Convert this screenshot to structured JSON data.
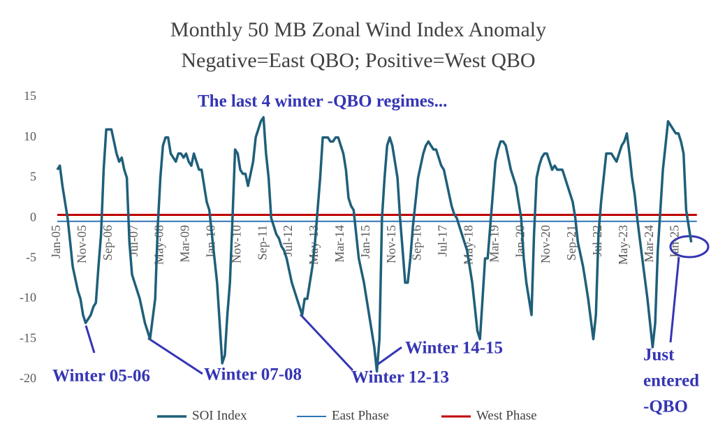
{
  "chart_data": {
    "type": "line",
    "title": "Monthly  50 MB  Zonal  Wind Index Anomaly",
    "subtitle": "Negative=East  QBO; Positive=West QBO",
    "categories": [
      "Jan-05",
      null,
      null,
      null,
      null,
      null,
      null,
      null,
      null,
      null,
      "Nov-05",
      null,
      null,
      null,
      null,
      null,
      null,
      null,
      null,
      null,
      "Sep-06",
      null,
      null,
      null,
      null,
      null,
      null,
      null,
      null,
      null,
      "Jul-07",
      null,
      null,
      null,
      null,
      null,
      null,
      null,
      null,
      null,
      "May-08",
      null,
      null,
      null,
      null,
      null,
      null,
      null,
      null,
      null,
      "Mar-09",
      null,
      null,
      null,
      null,
      null,
      null,
      null,
      null,
      null,
      "Jan-10",
      null,
      null,
      null,
      null,
      null,
      null,
      null,
      null,
      null,
      "Nov-10",
      null,
      null,
      null,
      null,
      null,
      null,
      null,
      null,
      null,
      "Sep-11",
      null,
      null,
      null,
      null,
      null,
      null,
      null,
      null,
      null,
      "Jul-12",
      null,
      null,
      null,
      null,
      null,
      null,
      null,
      null,
      null,
      "May-13",
      null,
      null,
      null,
      null,
      null,
      null,
      null,
      null,
      null,
      "Mar-14",
      null,
      null,
      null,
      null,
      null,
      null,
      null,
      null,
      null,
      "Jan-15",
      null,
      null,
      null,
      null,
      null,
      null,
      null,
      null,
      null,
      "Nov-15",
      null,
      null,
      null,
      null,
      null,
      null,
      null,
      null,
      null,
      "Sep-16",
      null,
      null,
      null,
      null,
      null,
      null,
      null,
      null,
      null,
      "Jul-17",
      null,
      null,
      null,
      null,
      null,
      null,
      null,
      null,
      null,
      "May-18",
      null,
      null,
      null,
      null,
      null,
      null,
      null,
      null,
      null,
      "Mar-19",
      null,
      null,
      null,
      null,
      null,
      null,
      null,
      null,
      null,
      "Jan-20",
      null,
      null,
      null,
      null,
      null,
      null,
      null,
      null,
      null,
      "Nov-20",
      null,
      null,
      null,
      null,
      null,
      null,
      null,
      null,
      null,
      "Sep-21",
      null,
      null,
      null,
      null,
      null,
      null,
      null,
      null,
      null,
      "Jul-22",
      null,
      null,
      null,
      null,
      null,
      null,
      null,
      null,
      null,
      "May-23",
      null,
      null,
      null,
      null,
      null,
      null,
      null,
      null,
      null,
      "Mar-24",
      null,
      null,
      null,
      null,
      null,
      null,
      null,
      null,
      null,
      "Jan-25",
      null,
      null,
      null,
      null,
      null,
      null
    ],
    "series": [
      {
        "name": "SOI Index",
        "color": "#1f5f7a",
        "values": [
          6,
          6.5,
          4,
          2,
          0,
          -3,
          -6,
          -7.5,
          -9,
          -10,
          -12,
          -13,
          -12.5,
          -12,
          -11,
          -10.5,
          -6,
          -2,
          6,
          11,
          11,
          11,
          9.5,
          8,
          7,
          7.5,
          6,
          5,
          -3,
          -7,
          -8,
          -9,
          -10,
          -11.5,
          -13,
          -14,
          -15,
          -12.5,
          -10,
          -1,
          5,
          9,
          10,
          10,
          8,
          7.5,
          7,
          8,
          8,
          7.5,
          8,
          7,
          6.5,
          8,
          7,
          6,
          6,
          4,
          2,
          1,
          -2,
          -5,
          -8,
          -13,
          -18,
          -17,
          -12,
          -8,
          0,
          8.5,
          8,
          6,
          5.5,
          5.5,
          4,
          5.5,
          7,
          10,
          11,
          12,
          12.5,
          8,
          5,
          0,
          -1,
          -2,
          -2.5,
          -3.5,
          -4,
          -5,
          -6.5,
          -8,
          -9,
          -10,
          -11,
          -12,
          -10,
          -10,
          -8,
          -6,
          -3,
          1,
          5,
          10,
          10,
          10,
          9.5,
          9.5,
          10,
          10,
          9,
          8,
          6,
          2.5,
          1.5,
          1,
          -2,
          -5,
          -6.5,
          -8,
          -10,
          -12,
          -14,
          -16,
          -19,
          -15,
          0,
          5,
          9,
          10,
          9,
          7,
          5,
          0,
          -4,
          -8,
          -8,
          -5,
          -1,
          2,
          5,
          6.5,
          8,
          9,
          9.5,
          9,
          8.5,
          8.5,
          7.5,
          6.5,
          6,
          4.5,
          3,
          1.5,
          0.5,
          0,
          -1,
          -2,
          -3,
          -4,
          -6,
          -8,
          -11,
          -14,
          -15,
          -10,
          -5,
          -5,
          -1,
          3,
          7,
          8.5,
          9.5,
          9.5,
          9,
          7.5,
          6,
          5,
          4,
          2,
          0,
          -5,
          -8,
          -10,
          -12,
          -2,
          5,
          6.5,
          7.5,
          8,
          8,
          7,
          6,
          6.5,
          6,
          6,
          6,
          5,
          4,
          3,
          2,
          0,
          -3,
          -4.5,
          -6,
          -8,
          -10,
          -12.5,
          -15,
          -12,
          -2,
          2,
          5,
          8,
          8,
          8,
          7.5,
          7,
          8,
          9,
          9.5,
          10.5,
          8,
          5,
          3,
          0,
          -2.5,
          -5,
          -7.5,
          -10,
          -13,
          -16,
          -13,
          -4,
          1,
          6,
          9,
          12,
          11.5,
          11,
          10.5,
          10.5,
          9.5,
          8,
          1,
          -1,
          -3
        ]
      }
    ],
    "reference_lines": [
      {
        "name": "East Phase",
        "color": "#2e75b6",
        "value": -0.4
      },
      {
        "name": "West Phase",
        "color": "#c00000",
        "value": 0.4
      }
    ],
    "ylim": [
      -20,
      15
    ],
    "yticks": [
      -20,
      -15,
      -10,
      -5,
      0,
      5,
      10,
      15
    ],
    "grid": false,
    "legend": "bottom",
    "annotations": [
      "The last 4 winter -QBO regimes...",
      "Winter 05-06",
      "Winter 07-08",
      "Winter 12-13",
      "Winter 14-15",
      [
        "Just",
        "entered",
        "-QBO"
      ]
    ]
  }
}
